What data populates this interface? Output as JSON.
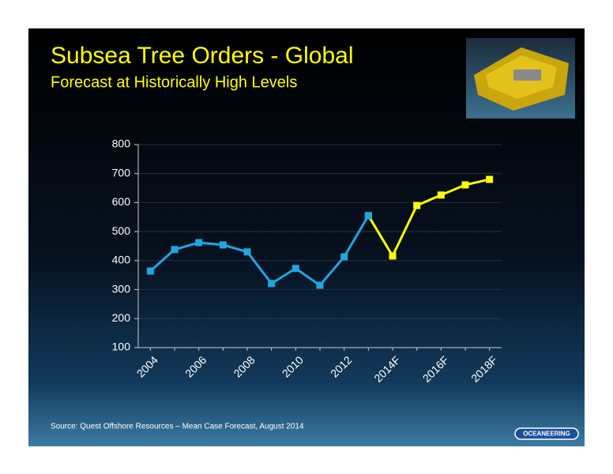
{
  "title": "Subsea Tree Orders - Global",
  "subtitle": "Forecast at Historically High Levels",
  "source": "Source:  Quest Offshore Resources – Mean Case Forecast, August 2014",
  "logo": "OCEANEERING",
  "chart_data": {
    "type": "line",
    "categories": [
      "2004",
      null,
      "2006",
      null,
      "2008",
      null,
      "2010",
      null,
      "2012",
      null,
      "2014F",
      null,
      "2016F",
      null,
      "2018F"
    ],
    "series": [
      {
        "color": "#ffff00",
        "values": [
          null,
          null,
          null,
          null,
          null,
          null,
          null,
          null,
          null,
          555,
          416,
          590,
          626,
          661,
          680
        ]
      },
      {
        "color": "#1ea7e1",
        "values": [
          364,
          438,
          462,
          454,
          430,
          321,
          373,
          315,
          413,
          555,
          null,
          null,
          null,
          null,
          null
        ]
      }
    ],
    "ylim": [
      100,
      800
    ],
    "yticks": [
      100,
      200,
      300,
      400,
      500,
      600,
      700,
      800
    ],
    "grid": true
  }
}
